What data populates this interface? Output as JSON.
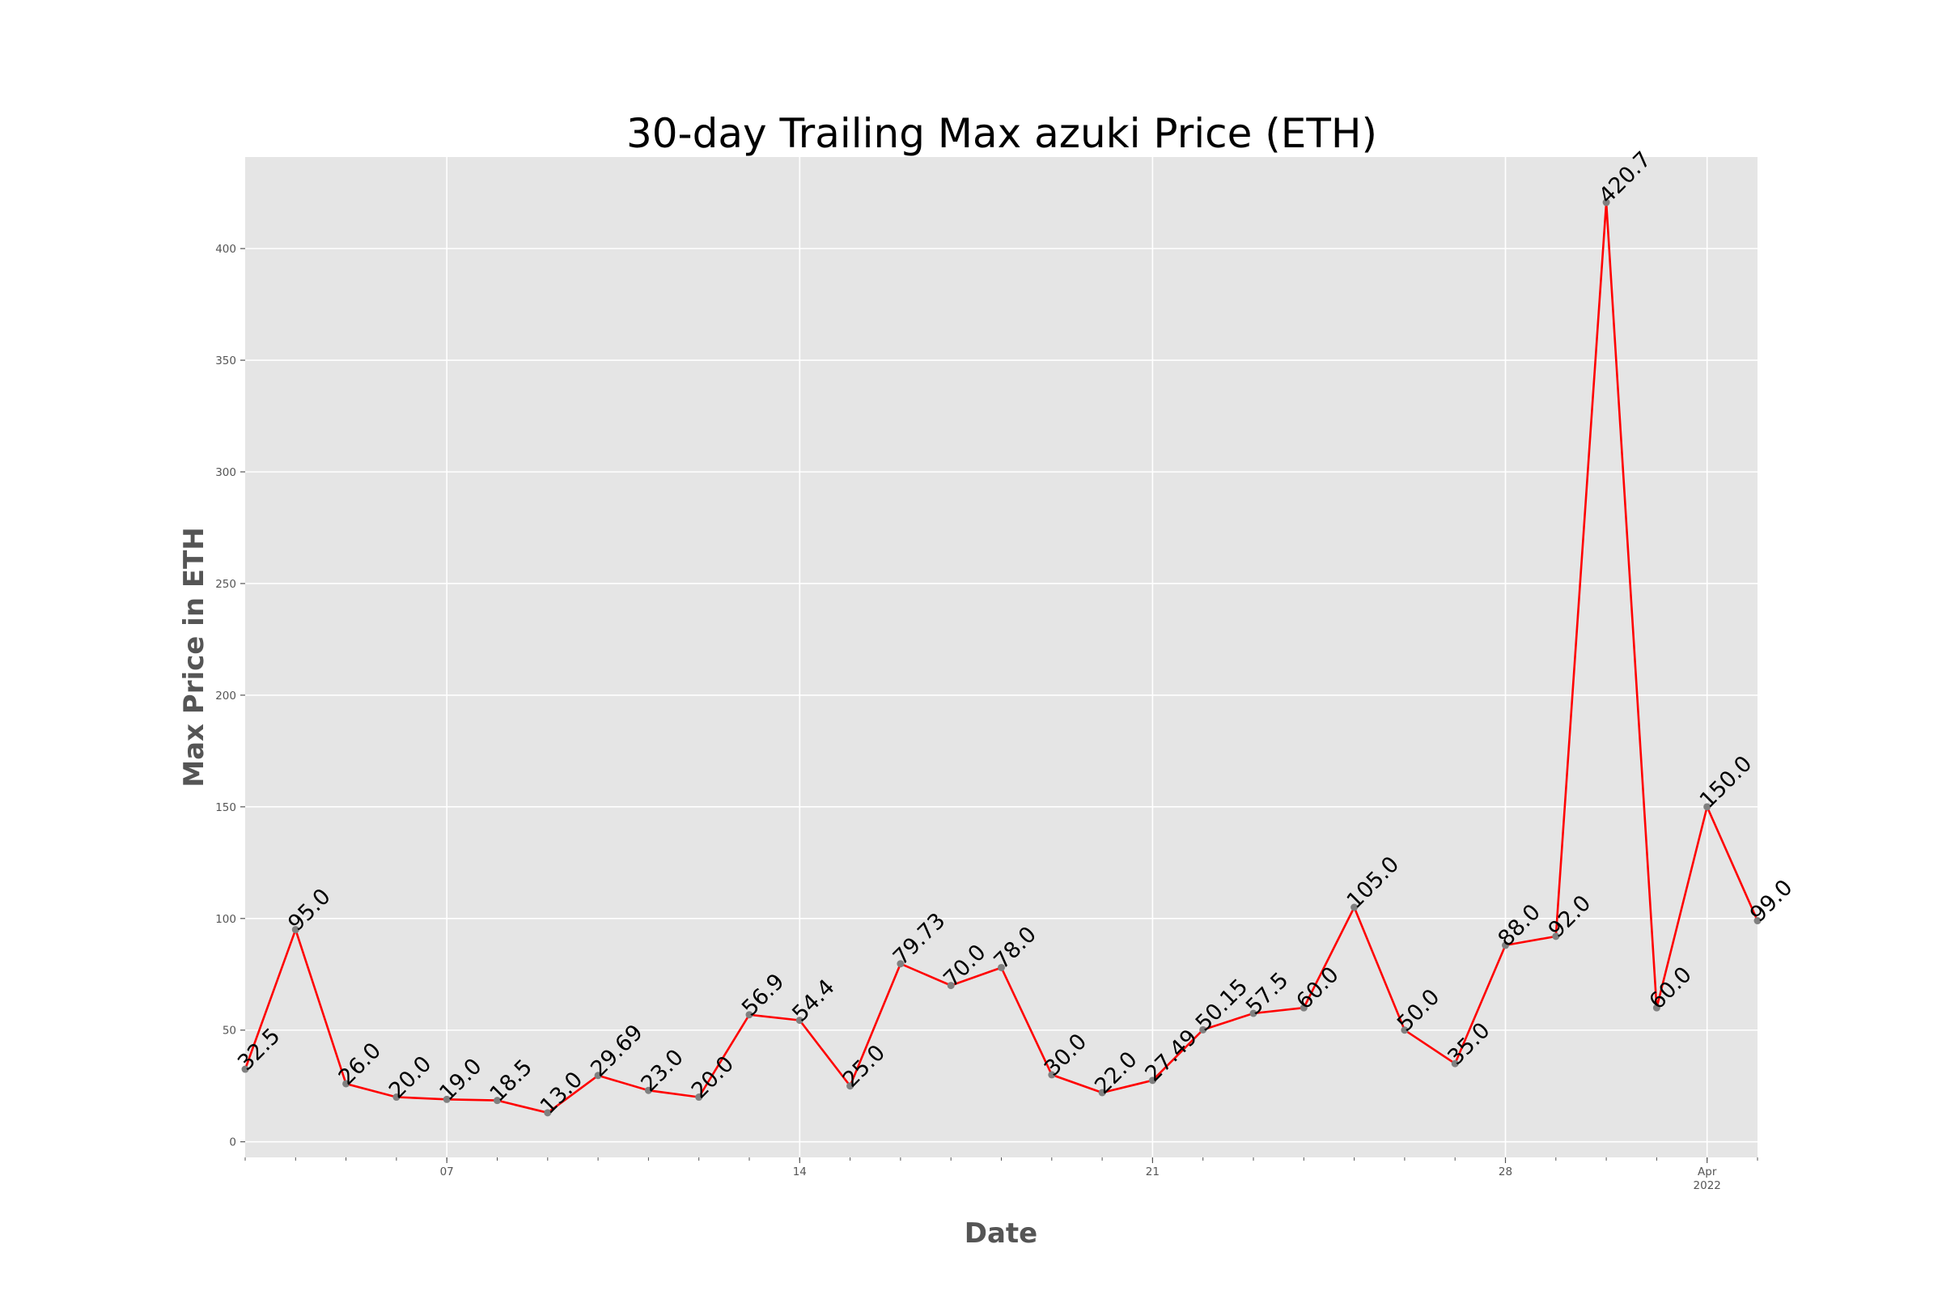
{
  "chart_data": {
    "type": "line",
    "title": "30-day Trailing Max azuki Price (ETH)",
    "xlabel": "Date",
    "ylabel": "Max Price in ETH",
    "x": [
      "2022-03-03",
      "2022-03-04",
      "2022-03-05",
      "2022-03-06",
      "2022-03-07",
      "2022-03-08",
      "2022-03-09",
      "2022-03-10",
      "2022-03-11",
      "2022-03-12",
      "2022-03-13",
      "2022-03-14",
      "2022-03-15",
      "2022-03-16",
      "2022-03-17",
      "2022-03-18",
      "2022-03-19",
      "2022-03-20",
      "2022-03-21",
      "2022-03-22",
      "2022-03-23",
      "2022-03-24",
      "2022-03-25",
      "2022-03-26",
      "2022-03-27",
      "2022-03-28",
      "2022-03-29",
      "2022-03-30",
      "2022-03-31",
      "2022-04-01",
      "2022-04-02"
    ],
    "values": [
      32.5,
      95.0,
      26.0,
      20.0,
      19.0,
      18.5,
      13.0,
      29.69,
      23.0,
      20.0,
      56.9,
      54.4,
      25.0,
      79.73,
      70.0,
      78.0,
      30.0,
      22.0,
      27.49,
      50.15,
      57.5,
      60.0,
      105.0,
      50.0,
      35.0,
      88.0,
      92.0,
      420.7,
      60.0,
      150.0,
      99.0
    ],
    "data_labels": [
      "32.5",
      "95.0",
      "26.0",
      "20.0",
      "19.0",
      "18.5",
      "13.0",
      "29.69",
      "23.0",
      "20.0",
      "56.9",
      "54.4",
      "25.0",
      "79.73",
      "70.0",
      "78.0",
      "30.0",
      "22.0",
      "27.49",
      "50.15",
      "57.5",
      "60.0",
      "105.0",
      "50.0",
      "35.0",
      "88.0",
      "92.0",
      "420.7",
      "60.0",
      "150.0",
      "99.0"
    ],
    "xlim": [
      "2022-03-03",
      "2022-04-02"
    ],
    "ylim": [
      -7,
      441
    ],
    "y_ticks": [
      0,
      50,
      100,
      150,
      200,
      250,
      300,
      350,
      400
    ],
    "y_tick_labels": [
      "0",
      "50",
      "100",
      "150",
      "200",
      "250",
      "300",
      "350",
      "400"
    ],
    "x_major_ticks": [
      {
        "date": "2022-03-07",
        "label": "07",
        "sublabel": ""
      },
      {
        "date": "2022-03-14",
        "label": "14",
        "sublabel": ""
      },
      {
        "date": "2022-03-21",
        "label": "21",
        "sublabel": ""
      },
      {
        "date": "2022-03-28",
        "label": "28",
        "sublabel": ""
      },
      {
        "date": "2022-04-01",
        "label": "Apr",
        "sublabel": "2022"
      }
    ],
    "grid": true,
    "colors": {
      "line": "#ff0000",
      "marker": "#808080",
      "plot_background": "#e5e5e5",
      "grid": "#ffffff",
      "axis_text": "#555555"
    }
  }
}
